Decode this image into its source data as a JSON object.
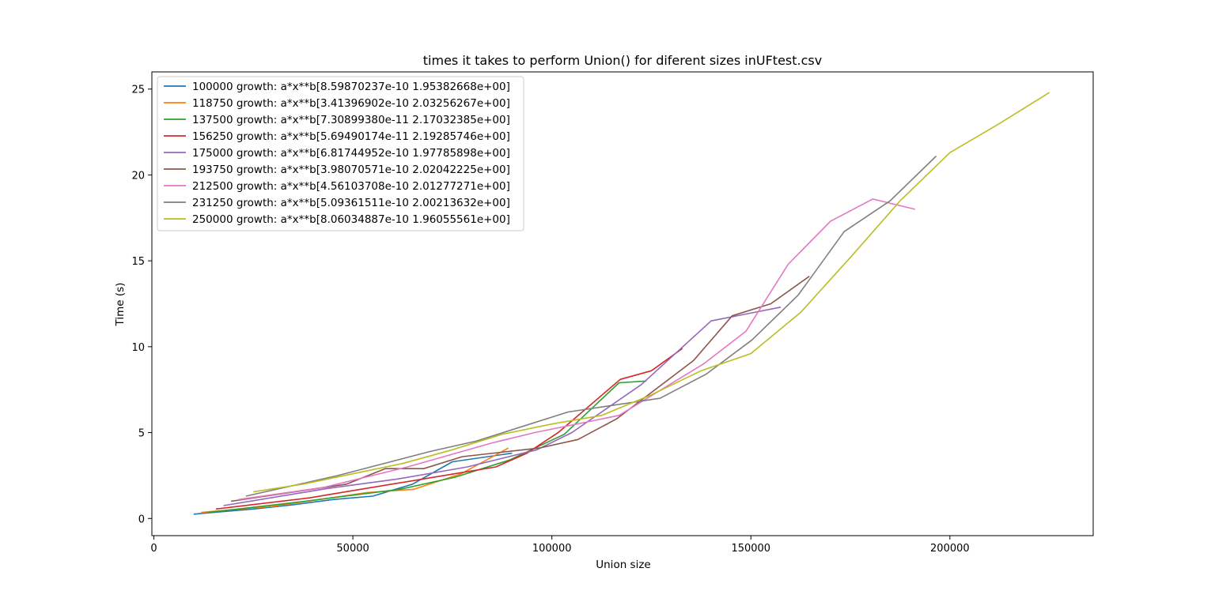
{
  "chart_data": {
    "type": "line",
    "title": "times it takes to perform Union() for diferent sizes inUFtest.csv",
    "xlabel": "Union size",
    "ylabel": "Time  (s)",
    "xlim": [
      -500,
      236000
    ],
    "ylim": [
      -1.0,
      26.0
    ],
    "xticks": [
      0,
      50000,
      100000,
      150000,
      200000
    ],
    "yticks": [
      0,
      5,
      10,
      15,
      20,
      25
    ],
    "grid": false,
    "legend": "upper-left",
    "series": [
      {
        "name": "100000 growth: a*x**b[8.59870237e-10 1.95382668e+00]",
        "color": "#1f77b4",
        "x": [
          10000,
          25000,
          35000,
          45000,
          55000,
          65000,
          75000,
          90000
        ],
        "y": [
          0.25,
          0.55,
          0.8,
          1.1,
          1.3,
          2.0,
          3.3,
          3.8
        ]
      },
      {
        "name": "118750 growth: a*x**b[3.41396902e-10 2.03256267e+00]",
        "color": "#ff7f0e",
        "x": [
          11875,
          29688,
          41563,
          53438,
          65313,
          77188,
          89063
        ],
        "y": [
          0.35,
          0.7,
          1.1,
          1.5,
          1.7,
          2.6,
          4.1
        ]
      },
      {
        "name": "137500 growth: a*x**b[7.30899380e-11 2.17032385e+00]",
        "color": "#2ca02c",
        "x": [
          13750,
          34375,
          48125,
          61875,
          75625,
          89375,
          103125,
          116875,
          123750
        ],
        "y": [
          0.35,
          0.9,
          1.3,
          1.7,
          2.4,
          3.4,
          4.9,
          7.9,
          8.0
        ]
      },
      {
        "name": "156250 growth: a*x**b[5.69490174e-11 2.19285746e+00]",
        "color": "#d62728",
        "x": [
          15625,
          39063,
          54688,
          70313,
          85938,
          93750,
          101563,
          117188,
          125000,
          132813
        ],
        "y": [
          0.55,
          1.2,
          1.8,
          2.4,
          3.0,
          3.8,
          5.0,
          8.1,
          8.6,
          9.9
        ]
      },
      {
        "name": "175000 growth: a*x**b[6.81744952e-10 1.97785898e+00]",
        "color": "#9467bd",
        "x": [
          17500,
          43750,
          61250,
          78750,
          96250,
          105000,
          122500,
          140000,
          148750,
          157500
        ],
        "y": [
          0.75,
          1.75,
          2.3,
          3.0,
          4.0,
          5.0,
          7.8,
          11.5,
          11.9,
          12.3
        ]
      },
      {
        "name": "193750 growth: a*x**b[3.98070571e-10 2.02042225e+00]",
        "color": "#8c564b",
        "x": [
          19375,
          48438,
          58125,
          67813,
          77500,
          96875,
          106563,
          116250,
          135625,
          145313,
          155000,
          164688
        ],
        "y": [
          1.0,
          2.0,
          2.9,
          2.9,
          3.6,
          4.1,
          4.6,
          5.8,
          9.2,
          11.8,
          12.5,
          14.1
        ]
      },
      {
        "name": "212500 growth: a*x**b[4.56103708e-10 2.01277271e+00]",
        "color": "#e377c2",
        "x": [
          21250,
          42500,
          63750,
          85000,
          95625,
          116875,
          138125,
          148750,
          159375,
          170000,
          180625,
          191250
        ],
        "y": [
          1.1,
          1.8,
          3.0,
          4.4,
          5.0,
          6.0,
          9.0,
          10.9,
          14.8,
          17.3,
          18.6,
          18.0
        ]
      },
      {
        "name": "231250 growth: a*x**b[5.09361511e-10 2.00213632e+00]",
        "color": "#7f7f7f",
        "x": [
          23125,
          46250,
          69375,
          80938,
          104063,
          127188,
          138750,
          150313,
          161875,
          173438,
          185000,
          196563
        ],
        "y": [
          1.3,
          2.5,
          3.9,
          4.5,
          6.2,
          7.0,
          8.4,
          10.4,
          13.0,
          16.7,
          18.5,
          21.1
        ]
      },
      {
        "name": "250000 growth: a*x**b[8.06034887e-10 1.96055561e+00]",
        "color": "#bcbd22",
        "x": [
          25000,
          37500,
          50000,
          62500,
          75000,
          87500,
          100000,
          112500,
          125000,
          137500,
          150000,
          162500,
          175000,
          187500,
          200000,
          212500,
          225000
        ],
        "y": [
          1.55,
          2.0,
          2.6,
          3.2,
          4.0,
          4.9,
          5.5,
          6.0,
          7.2,
          8.6,
          9.6,
          12.0,
          15.2,
          18.5,
          21.3,
          23.0,
          24.8
        ]
      }
    ]
  }
}
